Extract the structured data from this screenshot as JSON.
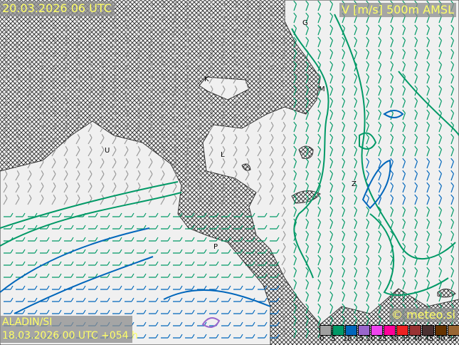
{
  "header": {
    "valid_time": "20.03.2026 06 UTC",
    "field": "V [m/s] 500m AMSL"
  },
  "footer": {
    "model": "ALADIN/SI",
    "run": "18.03.2026 00 UTC +054 h",
    "copyright": "© meteo.si"
  },
  "legend": {
    "unit": "m/s",
    "ticks": [
      "0",
      "5",
      "10",
      "15",
      "20",
      "25",
      "30",
      "35",
      "40",
      "45",
      "50",
      "55"
    ],
    "colors": [
      "#a0a0a0",
      "#009966",
      "#0066bb",
      "#9966cc",
      "#ee44ee",
      "#ff0099",
      "#ee2222",
      "#993333",
      "#4a3030",
      "#663300",
      "#996633",
      "#b89966"
    ]
  },
  "cities": [
    "K",
    "M",
    "U",
    "L",
    "Z",
    "P",
    "G"
  ],
  "contour_colors": {
    "5": "#009966",
    "10": "#0066bb",
    "15": "#9966cc"
  }
}
